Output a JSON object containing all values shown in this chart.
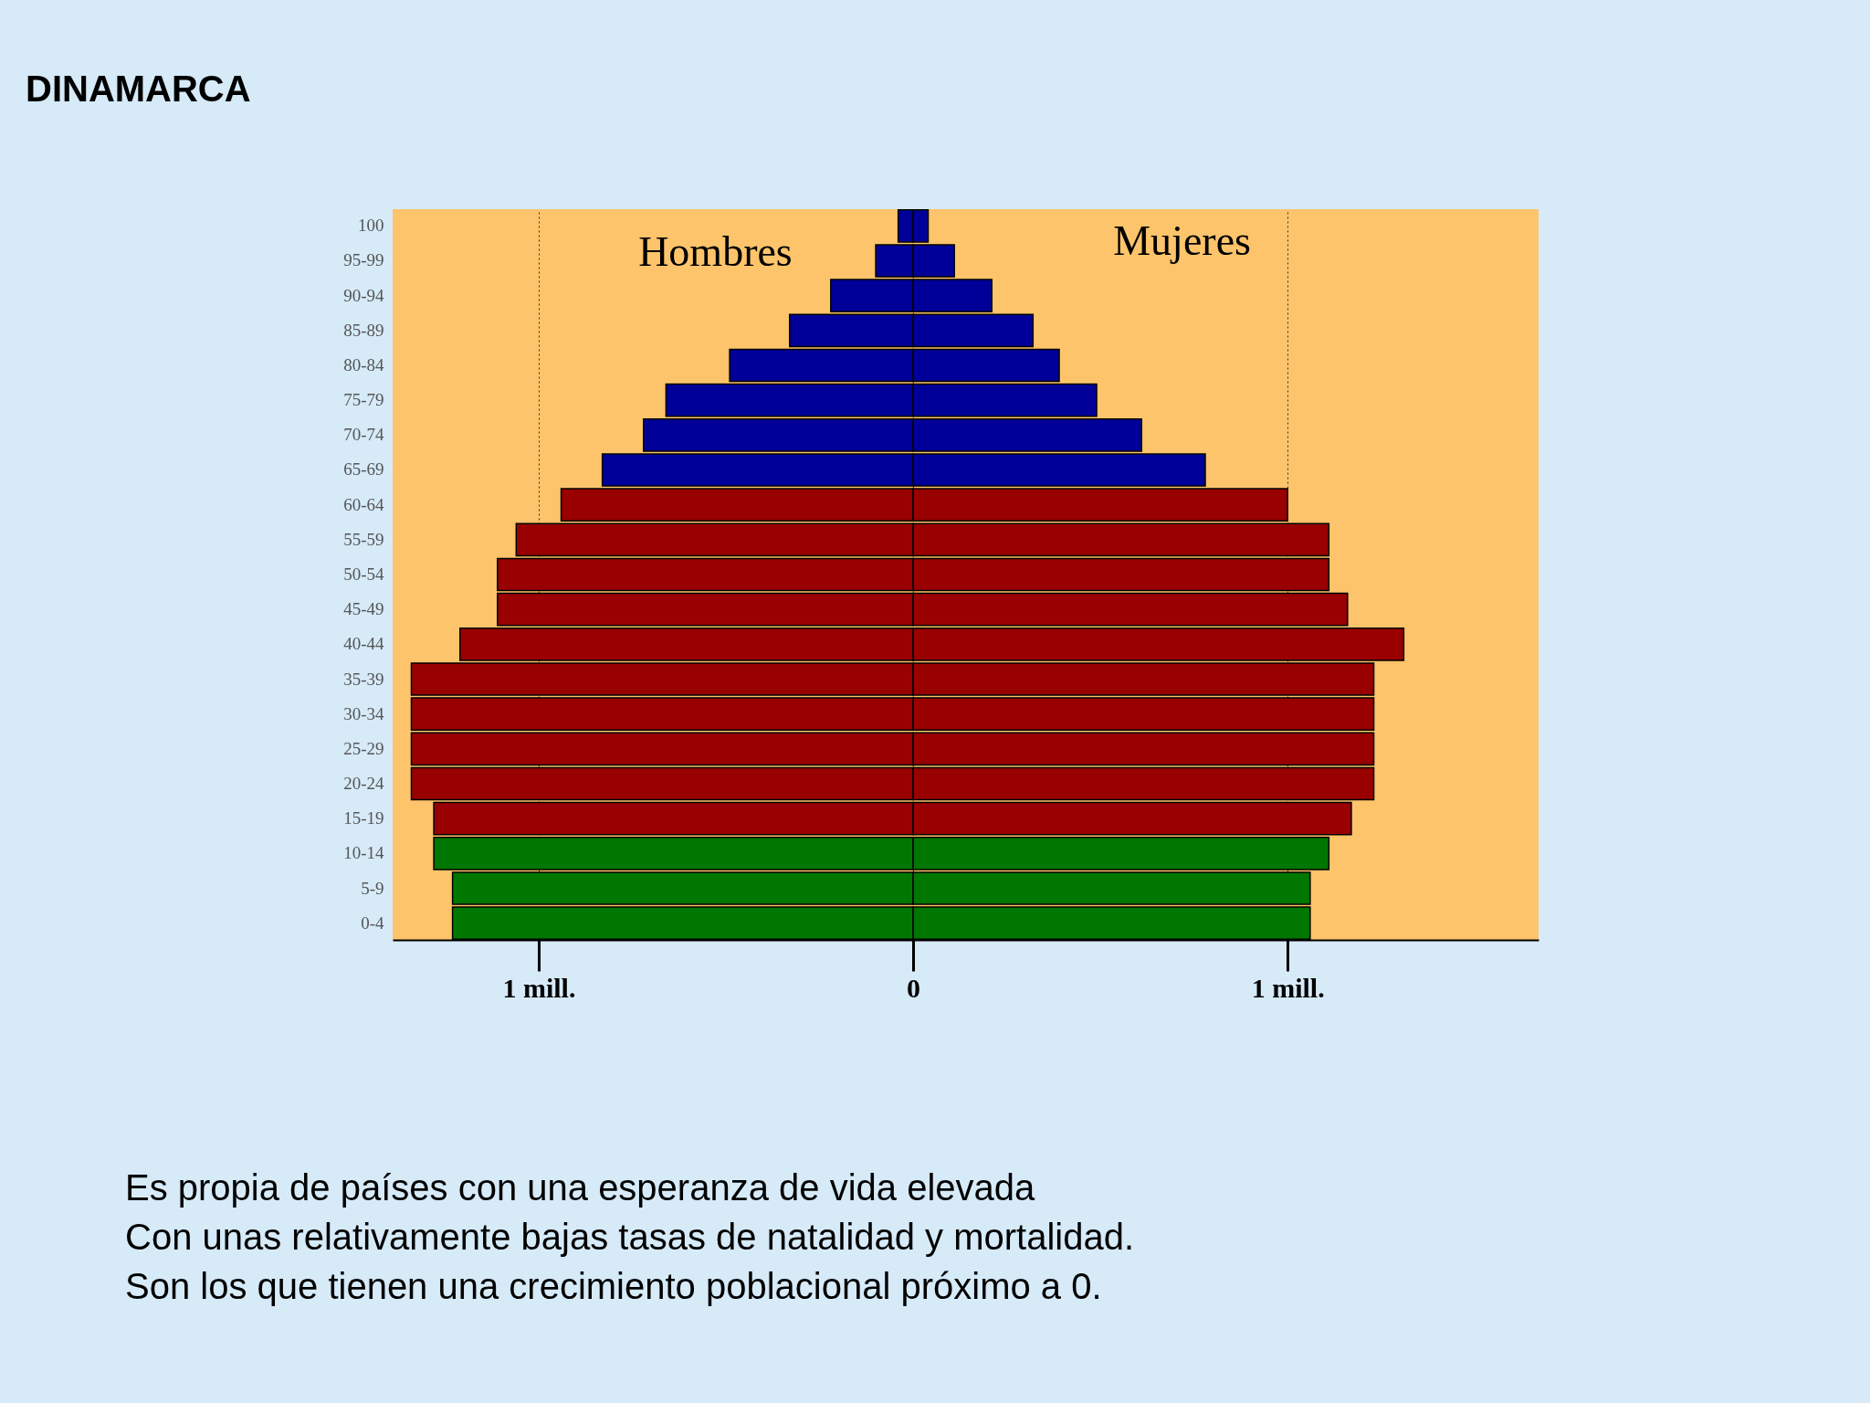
{
  "chart_data": {
    "type": "bar",
    "orientation": "horizontal",
    "title": "DINAMARCA",
    "categories": [
      "100",
      "95-99",
      "90-94",
      "85-89",
      "80-84",
      "75-79",
      "70-74",
      "65-69",
      "60-64",
      "55-59",
      "50-54",
      "45-49",
      "40-44",
      "35-39",
      "30-34",
      "25-29",
      "20-24",
      "15-19",
      "10-14",
      "5-9",
      "0-4"
    ],
    "series": [
      {
        "name": "Hombres",
        "values": [
          -0.04,
          -0.1,
          -0.22,
          -0.33,
          -0.49,
          -0.66,
          -0.72,
          -0.83,
          -0.94,
          -1.06,
          -1.11,
          -1.11,
          -1.21,
          -1.34,
          -1.34,
          -1.34,
          -1.34,
          -1.28,
          -1.28,
          -1.23,
          -1.23
        ],
        "colors": [
          "#000099",
          "#000099",
          "#000099",
          "#000099",
          "#000099",
          "#000099",
          "#000099",
          "#000099",
          "#990000",
          "#990000",
          "#990000",
          "#990000",
          "#990000",
          "#990000",
          "#990000",
          "#990000",
          "#990000",
          "#990000",
          "#007700",
          "#007700",
          "#007700"
        ]
      },
      {
        "name": "Mujeres",
        "values": [
          0.04,
          0.11,
          0.21,
          0.32,
          0.39,
          0.49,
          0.61,
          0.78,
          1.0,
          1.11,
          1.11,
          1.16,
          1.31,
          1.23,
          1.23,
          1.23,
          1.23,
          1.17,
          1.11,
          1.06,
          1.06
        ],
        "colors": [
          "#000099",
          "#000099",
          "#000099",
          "#000099",
          "#000099",
          "#000099",
          "#000099",
          "#000099",
          "#990000",
          "#990000",
          "#990000",
          "#990000",
          "#990000",
          "#990000",
          "#990000",
          "#990000",
          "#990000",
          "#990000",
          "#007700",
          "#007700",
          "#007700"
        ]
      }
    ],
    "xlim": [
      -1.39,
      1.67
    ],
    "xticks": [
      {
        "value": -1,
        "label": "1 mill."
      },
      0,
      {
        "value": 1,
        "label": "1 mill."
      }
    ],
    "grid": "x",
    "stacked": true,
    "annotations": [
      "Es propia de países con una esperanza de vida elevada",
      "Con unas relativamente bajas tasas de natalidad y mortalidad.",
      "Son los que tienen una crecimiento poblacional próximo a 0."
    ]
  }
}
